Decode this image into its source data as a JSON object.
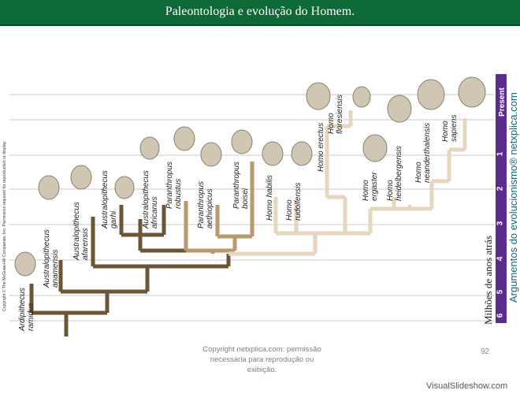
{
  "header": {
    "title": "Paleontologia e evolução do Homem."
  },
  "side_copyright": "Copyright © The McGraw-Hill Companies, Inc. Permission required for reproduction or display.",
  "scale": {
    "label": "Milhões de anos atrás",
    "ticks": [
      "Present",
      "1",
      "2",
      "3",
      "4",
      "5",
      "6"
    ],
    "color": "#5b2c8c"
  },
  "vertical_caption": "Argumentos do evolucionismo® netxplica.com",
  "species": [
    {
      "name1": "Ardipithecus",
      "name2": "ramidus"
    },
    {
      "name1": "Australopithecus",
      "name2": "anamensis"
    },
    {
      "name1": "Australopithecus",
      "name2": "afarensis"
    },
    {
      "name1": "Australopithecus",
      "name2": "garhi"
    },
    {
      "name1": "Australopithecus",
      "name2": "africanus"
    },
    {
      "name1": "Paranthropus",
      "name2": "robustus"
    },
    {
      "name1": "Paranthropus",
      "name2": "aethiopicus"
    },
    {
      "name1": "Paranthropus",
      "name2": "boisei"
    },
    {
      "name1": "Homo habilis",
      "name2": ""
    },
    {
      "name1": "Homo",
      "name2": "rudolfensis"
    },
    {
      "name1": "Homo erectus",
      "name2": ""
    },
    {
      "name1": "Homo",
      "name2": "floresiensis"
    },
    {
      "name1": "Homo",
      "name2": "ergaster"
    },
    {
      "name1": "Homo",
      "name2": "heidelbergensis"
    },
    {
      "name1": "Homo",
      "name2": "neanderthalensis"
    },
    {
      "name1": "Homo",
      "name2": "sapiens"
    }
  ],
  "colors": {
    "australopithecus": "#6b5638",
    "paranthropus": "#b89a6e",
    "homo": "#e6d6bf",
    "title_bar": "#0d6a38",
    "caption": "#0c6f76"
  },
  "footer": {
    "line1": "Copyright netxplica.com: permissão",
    "line2": "necessária para reprodução ou exibição."
  },
  "page_number": "92",
  "watermark": "VisualSlideshow.com"
}
